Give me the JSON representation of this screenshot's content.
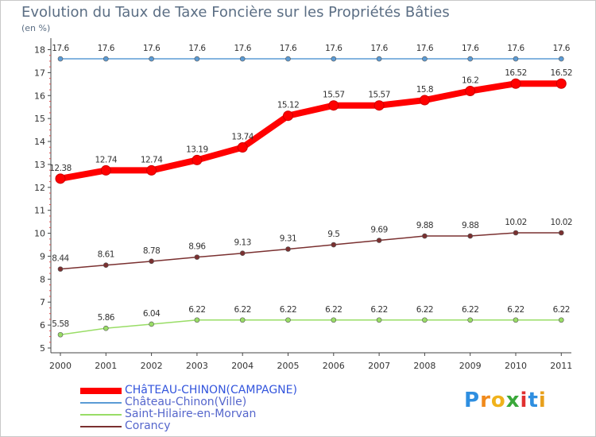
{
  "title": "Evolution du Taux de Taxe Foncière sur les Propriétés Bâties",
  "unit_label": "(en %)",
  "brand": {
    "text": "Proxiti",
    "letters": [
      "P",
      "r",
      "o",
      "x",
      "i",
      "t",
      "i"
    ],
    "colors": [
      "#2e8ee0",
      "#f08a1c",
      "#f0b21c",
      "#3aa83a",
      "#e03030",
      "#2e8ee0",
      "#e8a01c"
    ]
  },
  "chart_data": {
    "type": "line",
    "x": [
      "2000",
      "2001",
      "2002",
      "2003",
      "2004",
      "2005",
      "2006",
      "2007",
      "2008",
      "2009",
      "2010",
      "2011"
    ],
    "ylim": [
      5,
      18
    ],
    "yticks": [
      "5",
      "6",
      "7",
      "8",
      "9",
      "10",
      "11",
      "12",
      "13",
      "14",
      "15",
      "16",
      "17",
      "18"
    ],
    "grid": false,
    "legend_position": "bottom-left",
    "series": [
      {
        "name": "CHâTEAU-CHINON(CAMPAGNE)",
        "color": "#ff0000",
        "values": [
          12.38,
          12.74,
          12.74,
          13.19,
          13.74,
          15.12,
          15.57,
          15.57,
          15.8,
          16.2,
          16.52,
          16.52
        ],
        "labels": [
          "12.38",
          "12.74",
          "12.74",
          "13.19",
          "13.74",
          "15.12",
          "15.57",
          "15.57",
          "15.8",
          "16.2",
          "16.52",
          "16.52"
        ],
        "style": "thick"
      },
      {
        "name": "Château-Chinon(Ville)",
        "color": "#5b9bd5",
        "values": [
          17.6,
          17.6,
          17.6,
          17.6,
          17.6,
          17.6,
          17.6,
          17.6,
          17.6,
          17.6,
          17.6,
          17.6
        ],
        "labels": [
          "17.6",
          "17.6",
          "17.6",
          "17.6",
          "17.6",
          "17.6",
          "17.6",
          "17.6",
          "17.6",
          "17.6",
          "17.6",
          "17.6"
        ],
        "style": "thin"
      },
      {
        "name": "Saint-Hilaire-en-Morvan",
        "color": "#99dd66",
        "values": [
          5.58,
          5.86,
          6.04,
          6.22,
          6.22,
          6.22,
          6.22,
          6.22,
          6.22,
          6.22,
          6.22,
          6.22
        ],
        "labels": [
          "5.58",
          "5.86",
          "6.04",
          "6.22",
          "6.22",
          "6.22",
          "6.22",
          "6.22",
          "6.22",
          "6.22",
          "6.22",
          "6.22"
        ],
        "style": "thin"
      },
      {
        "name": "Corancy",
        "color": "#7a3030",
        "values": [
          8.44,
          8.61,
          8.78,
          8.96,
          9.13,
          9.31,
          9.5,
          9.69,
          9.88,
          9.88,
          10.02,
          10.02
        ],
        "labels": [
          "8.44",
          "8.61",
          "8.78",
          "8.96",
          "9.13",
          "9.31",
          "9.5",
          "9.69",
          "9.88",
          "9.88",
          "10.02",
          "10.02"
        ],
        "style": "thin"
      }
    ]
  }
}
